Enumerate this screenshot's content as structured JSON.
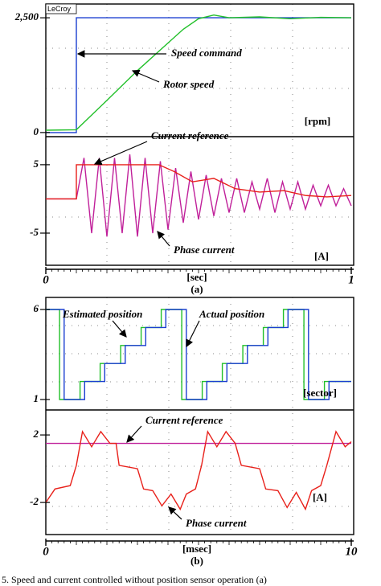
{
  "brand": "LeCroy",
  "caption": "5.  Speed and current controlled without position sensor operation (a)",
  "chart_data": [
    {
      "type": "line",
      "xlim": [
        0,
        1
      ],
      "ylim": [
        -90,
        2800
      ],
      "yticks": [
        {
          "value": 2500,
          "label": "2,500"
        },
        0
      ],
      "unit_label": "[rpm]",
      "annotations": [
        "Speed command",
        "Rotor speed"
      ],
      "series": [
        {
          "name": "Speed command",
          "color": "#1a3fd0",
          "x": [
            0,
            0.1,
            0.1,
            1
          ],
          "values": [
            0,
            0,
            2500,
            2500
          ]
        },
        {
          "name": "Rotor speed",
          "color": "#22c02a",
          "x": [
            0,
            0.1,
            0.2,
            0.3,
            0.4,
            0.45,
            0.5,
            0.55,
            0.6,
            0.7,
            0.8,
            0.9,
            1
          ],
          "values": [
            50,
            60,
            700,
            1350,
            1950,
            2250,
            2480,
            2560,
            2500,
            2520,
            2480,
            2510,
            2500
          ]
        }
      ]
    },
    {
      "type": "line",
      "xlim": [
        0,
        1
      ],
      "ylim": [
        -9.7,
        9.1
      ],
      "yticks": [
        5,
        -5
      ],
      "xticks": [
        0,
        1
      ],
      "xlabel": "[sec]",
      "panel_label": "(a)",
      "unit_label": "[A]",
      "annotations": [
        "Current reference",
        "Phase current"
      ],
      "series": [
        {
          "name": "Phase current",
          "color": "#c0209a",
          "x": [
            0,
            0.1,
            0.125,
            0.15,
            0.175,
            0.2,
            0.225,
            0.25,
            0.275,
            0.3,
            0.325,
            0.35,
            0.375,
            0.4,
            0.425,
            0.45,
            0.475,
            0.5,
            0.525,
            0.55,
            0.575,
            0.6,
            0.625,
            0.65,
            0.675,
            0.7,
            0.725,
            0.75,
            0.775,
            0.8,
            0.825,
            0.85,
            0.875,
            0.9,
            0.925,
            0.95,
            0.975,
            1
          ],
          "values": [
            0,
            0,
            6,
            -5,
            6,
            -5.5,
            6,
            -5,
            6.5,
            -5.5,
            6,
            -5,
            5.5,
            -4.5,
            4.5,
            -3.5,
            4,
            -3,
            3.5,
            -2.5,
            3,
            -2,
            3,
            -2,
            2.5,
            -1.5,
            3,
            -2,
            2.5,
            -1.5,
            2.5,
            -1.5,
            2,
            -1,
            2,
            -1,
            1.5,
            -1
          ]
        },
        {
          "name": "Current reference",
          "color": "#e8201a",
          "x": [
            0,
            0.1,
            0.1,
            0.37,
            0.42,
            0.48,
            0.55,
            0.62,
            0.7,
            0.78,
            0.85,
            0.92,
            1
          ],
          "values": [
            0,
            0,
            5,
            5,
            4,
            2.5,
            3,
            1.5,
            1,
            1.2,
            0.5,
            0.3,
            0.5
          ]
        }
      ]
    },
    {
      "type": "line",
      "xlim": [
        0,
        10
      ],
      "ylim": [
        0.42,
        6.67
      ],
      "yticks": [
        6,
        1
      ],
      "unit_label": "[sector]",
      "annotations": [
        "Estimated position",
        "Actual position"
      ],
      "series": [
        {
          "name": "Estimated position",
          "color": "#22c02a",
          "x": [
            0,
            0.45,
            0.45,
            1.12,
            1.12,
            1.78,
            1.78,
            2.45,
            2.45,
            3.12,
            3.12,
            3.78,
            3.78,
            4.45,
            4.45,
            5.12,
            5.12,
            5.78,
            5.78,
            6.45,
            6.45,
            7.12,
            7.12,
            7.78,
            7.78,
            8.45,
            8.45,
            9.12,
            9.12,
            10
          ],
          "values": [
            6,
            6,
            1,
            1,
            2,
            2,
            3,
            3,
            4,
            4,
            5,
            5,
            6,
            6,
            1,
            1,
            2,
            2,
            3,
            3,
            4,
            4,
            5,
            5,
            6,
            6,
            1,
            1,
            2,
            2
          ]
        },
        {
          "name": "Actual position",
          "color": "#1a3fd0",
          "x": [
            0,
            0.6,
            0.6,
            1.27,
            1.27,
            1.93,
            1.93,
            2.6,
            2.6,
            3.27,
            3.27,
            3.93,
            3.93,
            4.6,
            4.6,
            5.27,
            5.27,
            5.93,
            5.93,
            6.6,
            6.6,
            7.27,
            7.27,
            7.93,
            7.93,
            8.6,
            8.6,
            9.27,
            9.27,
            10
          ],
          "values": [
            6,
            6,
            1,
            1,
            2,
            2,
            3,
            3,
            4,
            4,
            5,
            5,
            6,
            6,
            1,
            1,
            2,
            2,
            3,
            3,
            4,
            4,
            5,
            5,
            6,
            6,
            1,
            1,
            2,
            2
          ]
        }
      ]
    },
    {
      "type": "line",
      "xlim": [
        0,
        10
      ],
      "ylim": [
        -3.9,
        3.48
      ],
      "yticks": [
        2,
        -2
      ],
      "xticks": [
        0,
        10
      ],
      "xlabel": "[msec]",
      "panel_label": "(b)",
      "unit_label": "[A]",
      "annotations": [
        "Current reference",
        "Phase current"
      ],
      "series": [
        {
          "name": "Current reference",
          "color": "#c0209a",
          "x": [
            0,
            10
          ],
          "values": [
            1.5,
            1.5
          ]
        },
        {
          "name": "Phase current",
          "color": "#e8201a",
          "x": [
            0,
            0.3,
            0.8,
            1.0,
            1.2,
            1.5,
            1.8,
            2.1,
            2.3,
            2.4,
            3.0,
            3.2,
            3.5,
            3.8,
            4.1,
            4.4,
            4.6,
            4.9,
            5.1,
            5.3,
            5.6,
            5.9,
            6.2,
            6.4,
            7.0,
            7.2,
            7.6,
            7.9,
            8.2,
            8.5,
            8.7,
            9.0,
            9.2,
            9.5,
            9.8,
            10
          ],
          "values": [
            -2,
            -1.2,
            -1,
            0.2,
            2.2,
            1.3,
            2.2,
            1.5,
            1.5,
            0.2,
            0,
            -1.2,
            -1.3,
            -2.2,
            -1.5,
            -2.4,
            -1.5,
            -1.2,
            0.2,
            2.2,
            1.3,
            2.2,
            1.5,
            0.2,
            0,
            -1.2,
            -1.3,
            -2.3,
            -1.4,
            -2.4,
            -1.3,
            -1,
            0.2,
            2.2,
            1.3,
            1.6
          ]
        }
      ]
    }
  ]
}
